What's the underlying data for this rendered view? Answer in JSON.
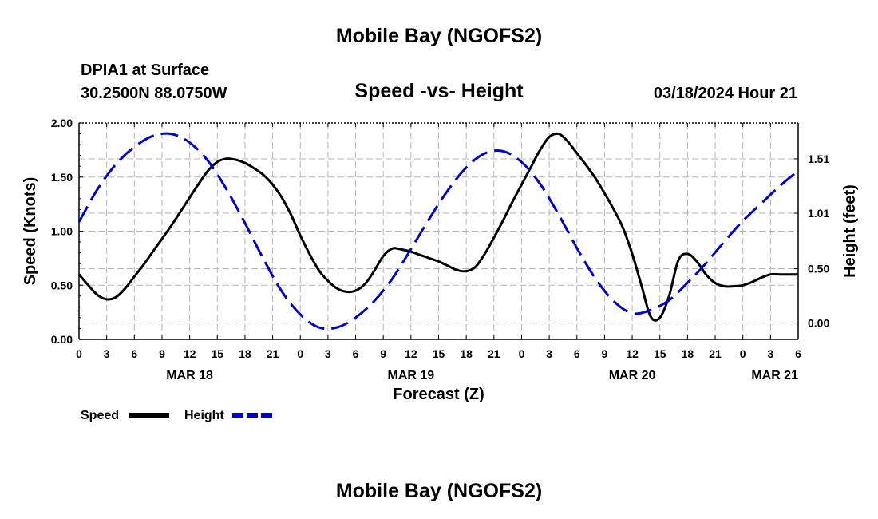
{
  "page": {
    "title_top": "Mobile Bay (NGOFS2)",
    "title_bottom": "Mobile Bay (NGOFS2)",
    "station": "DPIA1 at Surface",
    "coords": "30.2500N  88.0750W",
    "subtitle": "Speed -vs- Height",
    "timestamp": "03/18/2024 Hour 21"
  },
  "chart_data": {
    "type": "line",
    "title": "Speed -vs- Height",
    "xlabel": "Forecast (Z)",
    "ylabel": "Speed (Knots)",
    "y2label": "Height (feet)",
    "xlim": [
      0,
      78
    ],
    "ylim": [
      0,
      2.0
    ],
    "y2lim": [
      -0.15,
      1.84
    ],
    "x_tick_values": [
      0,
      3,
      6,
      9,
      12,
      15,
      18,
      21,
      24,
      27,
      30,
      33,
      36,
      39,
      42,
      45,
      48,
      51,
      54,
      57,
      60,
      63,
      66,
      69,
      72,
      75,
      78
    ],
    "x_tick_labels": [
      "0",
      "3",
      "6",
      "9",
      "12",
      "15",
      "18",
      "21",
      "0",
      "3",
      "6",
      "9",
      "12",
      "15",
      "18",
      "21",
      "0",
      "3",
      "6",
      "9",
      "12",
      "15",
      "18",
      "21",
      "0",
      "3",
      "6"
    ],
    "day_labels": [
      {
        "x": 12,
        "label": "MAR 18"
      },
      {
        "x": 36,
        "label": "MAR 19"
      },
      {
        "x": 60,
        "label": "MAR 20"
      },
      {
        "x": 78,
        "label": "MAR 21"
      }
    ],
    "y_ticks": [
      "0.00",
      "0.50",
      "1.00",
      "1.50",
      "2.00"
    ],
    "y2_ticks": [
      "0.00",
      "0.50",
      "1.01",
      "1.51"
    ],
    "legend": [
      {
        "label": "Speed",
        "color": "#000000",
        "dash": "solid"
      },
      {
        "label": "Height",
        "color": "#0000cc",
        "dash": "dashed"
      }
    ],
    "series": [
      {
        "name": "Speed",
        "axis": "left",
        "color": "#000000",
        "x": [
          0,
          1,
          2,
          3,
          4,
          5,
          6,
          7,
          8,
          9,
          10,
          11,
          12,
          13,
          14,
          15,
          16,
          17,
          18,
          19,
          20,
          21,
          22,
          23,
          24,
          25,
          26,
          27,
          28,
          29,
          30,
          31,
          32,
          33,
          34,
          35,
          36,
          37,
          38,
          39,
          40,
          41,
          42,
          43,
          44,
          45,
          46,
          47,
          48,
          49,
          50,
          51,
          52,
          53,
          54,
          55,
          56,
          57,
          58,
          59,
          60,
          61,
          62,
          63,
          64,
          65,
          66,
          67,
          68,
          69,
          70,
          71,
          72,
          73,
          74,
          75,
          76,
          77,
          78
        ],
        "values": [
          0.6,
          0.5,
          0.41,
          0.37,
          0.39,
          0.47,
          0.58,
          0.69,
          0.81,
          0.93,
          1.05,
          1.18,
          1.31,
          1.44,
          1.56,
          1.64,
          1.67,
          1.66,
          1.63,
          1.58,
          1.52,
          1.43,
          1.31,
          1.15,
          0.96,
          0.79,
          0.64,
          0.54,
          0.47,
          0.44,
          0.45,
          0.51,
          0.63,
          0.77,
          0.84,
          0.83,
          0.81,
          0.78,
          0.75,
          0.72,
          0.68,
          0.64,
          0.63,
          0.67,
          0.79,
          0.94,
          1.1,
          1.27,
          1.43,
          1.59,
          1.75,
          1.87,
          1.9,
          1.83,
          1.72,
          1.61,
          1.49,
          1.35,
          1.2,
          1.03,
          0.79,
          0.5,
          0.21,
          0.2,
          0.4,
          0.73,
          0.79,
          0.72,
          0.6,
          0.52,
          0.49,
          0.49,
          0.5,
          0.53,
          0.57,
          0.6,
          0.6,
          0.6,
          0.6
        ]
      },
      {
        "name": "Height",
        "axis": "right",
        "color": "#0000cc",
        "x": [
          0,
          2,
          4,
          6,
          8,
          10,
          12,
          14,
          16,
          18,
          20,
          22,
          24,
          26,
          28,
          30,
          32,
          34,
          36,
          38,
          40,
          42,
          44,
          46,
          48,
          50,
          52,
          54,
          56,
          58,
          60,
          62,
          64,
          66,
          68,
          70,
          72,
          74,
          76,
          78
        ],
        "values": [
          0.93,
          1.23,
          1.46,
          1.62,
          1.72,
          1.74,
          1.66,
          1.49,
          1.23,
          0.92,
          0.59,
          0.29,
          0.08,
          -0.04,
          -0.04,
          0.05,
          0.2,
          0.41,
          0.68,
          0.96,
          1.22,
          1.43,
          1.56,
          1.58,
          1.48,
          1.28,
          1.0,
          0.69,
          0.41,
          0.2,
          0.09,
          0.12,
          0.21,
          0.37,
          0.55,
          0.75,
          0.94,
          1.1,
          1.26,
          1.4
        ]
      }
    ]
  }
}
